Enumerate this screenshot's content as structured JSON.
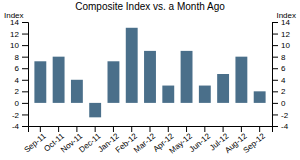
{
  "chart_data": {
    "type": "bar",
    "title": "Composite Index vs. a Month Ago",
    "ylabel": "Index",
    "y2label": "Index",
    "categories": [
      "Sep-11",
      "Oct-11",
      "Nov-11",
      "Dec-11",
      "Jan-12",
      "Feb-12",
      "Mar-12",
      "Apr-12",
      "May-12",
      "Jun-12",
      "Jul-12",
      "Aug-12",
      "Sep-12"
    ],
    "values": [
      7.2,
      8.0,
      4.0,
      -2.5,
      7.2,
      13.0,
      9.0,
      3.0,
      9.0,
      3.0,
      5.0,
      8.0,
      2.0
    ],
    "color": "#4a6f8a",
    "ylim": [
      -4,
      14
    ],
    "yticks": [
      -4,
      -2,
      0,
      2,
      4,
      6,
      8,
      10,
      12,
      14
    ],
    "y2lim": [
      -4,
      14
    ],
    "y2ticks": [
      -4,
      -2,
      0,
      2,
      4,
      6,
      8,
      10,
      12,
      14
    ],
    "grid": false
  }
}
